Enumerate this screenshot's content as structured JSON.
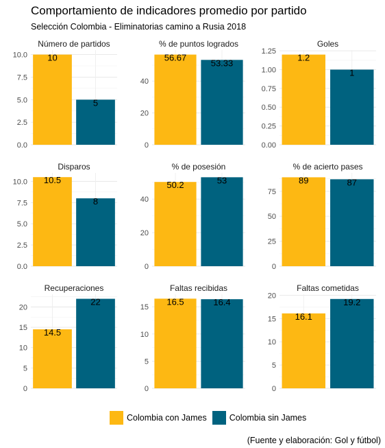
{
  "title": "Comportamiento de indicadores promedio por partido",
  "subtitle": "Selección Colombia - Eliminatorias camino a Rusia 2018",
  "caption": "(Fuente y elaboración: Gol y fútbol)",
  "legend": {
    "items": [
      {
        "label": "Colombia con James",
        "color": "#FDB813"
      },
      {
        "label": "Colombia sin James",
        "color": "#00627F"
      }
    ]
  },
  "chart_data": {
    "type": "bar",
    "series_names": [
      "Colombia con James",
      "Colombia sin James"
    ],
    "colors": [
      "#FDB813",
      "#00627F"
    ],
    "grid": true,
    "legend_position": "bottom",
    "panels": [
      {
        "title": "Número de partidos",
        "values": [
          10,
          5
        ],
        "labels": [
          "10",
          "5"
        ],
        "ylim": [
          0,
          10.5
        ],
        "ticks": [
          0,
          2.5,
          5,
          7.5,
          10
        ],
        "tick_labels": [
          "0.0",
          "2.5",
          "5.0",
          "7.5",
          "10.0"
        ]
      },
      {
        "title": "% de puntos logrados",
        "values": [
          56.67,
          53.33
        ],
        "labels": [
          "56.67",
          "53.33"
        ],
        "ylim": [
          0,
          59.5
        ],
        "ticks": [
          0,
          20,
          40
        ],
        "tick_labels": [
          "0",
          "20",
          "40"
        ]
      },
      {
        "title": "Goles",
        "values": [
          1.2,
          1
        ],
        "labels": [
          "1.2",
          "1"
        ],
        "ylim": [
          0,
          1.26
        ],
        "ticks": [
          0,
          0.25,
          0.5,
          0.75,
          1,
          1.25
        ],
        "tick_labels": [
          "0.00",
          "0.25",
          "0.50",
          "0.75",
          "1.00",
          "1.25"
        ]
      },
      {
        "title": "Disparos",
        "values": [
          10.5,
          8
        ],
        "labels": [
          "10.5",
          "8"
        ],
        "ylim": [
          0,
          11.0
        ],
        "ticks": [
          0,
          2.5,
          5,
          7.5,
          10
        ],
        "tick_labels": [
          "0.0",
          "2.5",
          "5.0",
          "7.5",
          "10.0"
        ]
      },
      {
        "title": "% de posesión",
        "values": [
          50.2,
          53
        ],
        "labels": [
          "50.2",
          "53"
        ],
        "ylim": [
          0,
          55.6
        ],
        "ticks": [
          0,
          20,
          40
        ],
        "tick_labels": [
          "0",
          "20",
          "40"
        ]
      },
      {
        "title": "% de acierto pases",
        "values": [
          89,
          87
        ],
        "labels": [
          "89",
          "87"
        ],
        "ylim": [
          0,
          93.4
        ],
        "ticks": [
          0,
          25,
          50,
          75
        ],
        "tick_labels": [
          "0",
          "25",
          "50",
          "75"
        ]
      },
      {
        "title": "Recuperaciones",
        "values": [
          14.5,
          22
        ],
        "labels": [
          "14.5",
          "22"
        ],
        "ylim": [
          0,
          23.1
        ],
        "ticks": [
          0,
          5,
          10,
          15,
          20
        ],
        "tick_labels": [
          "0",
          "5",
          "10",
          "15",
          "20"
        ]
      },
      {
        "title": "Faltas recibidas",
        "values": [
          16.5,
          16.4
        ],
        "labels": [
          "16.5",
          "16.4"
        ],
        "ylim": [
          0,
          17.3
        ],
        "ticks": [
          0,
          5,
          10,
          15
        ],
        "tick_labels": [
          "0",
          "5",
          "10",
          "15"
        ]
      },
      {
        "title": "Faltas cometidas",
        "values": [
          16.1,
          19.2
        ],
        "labels": [
          "16.1",
          "19.2"
        ],
        "ylim": [
          0,
          20.2
        ],
        "ticks": [
          0,
          5,
          10,
          15,
          20
        ],
        "tick_labels": [
          "0",
          "5",
          "10",
          "15",
          "20"
        ]
      }
    ]
  }
}
